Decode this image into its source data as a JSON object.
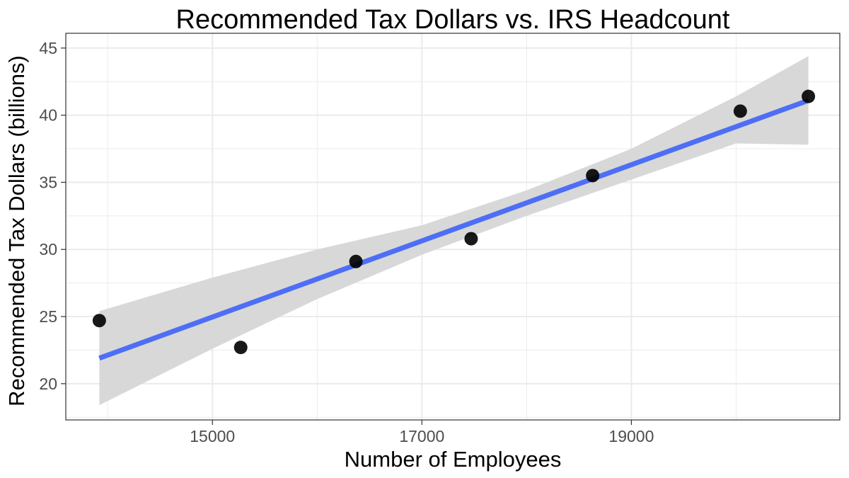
{
  "chart_data": {
    "type": "scatter",
    "title": "Recommended Tax Dollars vs. IRS Headcount",
    "xlabel": "Number of Employees",
    "ylabel": "Recommended Tax Dollars (billions)",
    "xlim": [
      13600,
      20990
    ],
    "ylim": [
      17.3,
      46.1
    ],
    "x_ticks": [
      15000,
      17000,
      19000
    ],
    "x_minor_ticks": [
      14000,
      16000,
      18000,
      20000
    ],
    "y_ticks": [
      20,
      25,
      30,
      35,
      40,
      45
    ],
    "y_minor_ticks": [
      17.5,
      22.5,
      27.5,
      32.5,
      37.5,
      42.5
    ],
    "grid": true,
    "points": [
      {
        "x": 13920,
        "y": 24.7
      },
      {
        "x": 15270,
        "y": 22.7
      },
      {
        "x": 16370,
        "y": 29.1
      },
      {
        "x": 17470,
        "y": 30.8
      },
      {
        "x": 18630,
        "y": 35.5
      },
      {
        "x": 20040,
        "y": 40.3
      },
      {
        "x": 20690,
        "y": 41.4
      }
    ],
    "trend_line": {
      "method": "linear",
      "from": {
        "x": 13920,
        "y": 21.9
      },
      "to": {
        "x": 20690,
        "y": 41.1
      }
    },
    "confidence_band": {
      "x": [
        13920,
        15000,
        16000,
        17000,
        18000,
        19000,
        20000,
        20690
      ],
      "lower": [
        18.4,
        22.6,
        26.3,
        29.6,
        32.5,
        35.2,
        37.9,
        37.8
      ],
      "upper": [
        25.4,
        27.9,
        30.0,
        31.8,
        34.4,
        37.5,
        41.4,
        44.4
      ]
    },
    "colors": {
      "trend": "#4d6ef5",
      "band": "#d6d6d6",
      "points": "#000000",
      "grid": "#ebebeb",
      "border": "#333333"
    }
  }
}
